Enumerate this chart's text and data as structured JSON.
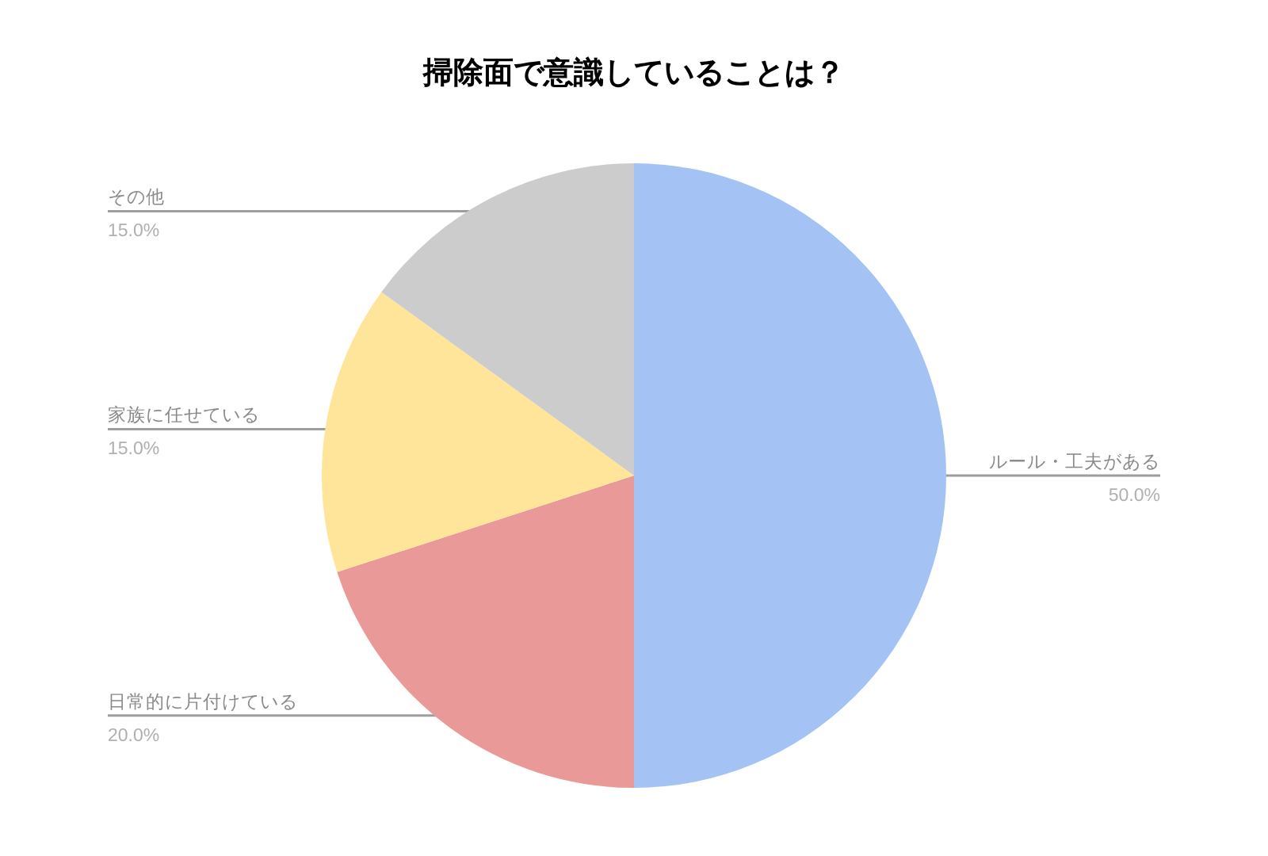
{
  "chart_data": {
    "type": "pie",
    "title": "掃除面で意識していることは？",
    "categories": [
      "ルール・工夫がある",
      "日常的に片付けている",
      "家族に任せている",
      "その他"
    ],
    "values": [
      50,
      20,
      15,
      15
    ],
    "colors": [
      "#a4c2f4",
      "#ea9999",
      "#ffe599",
      "#cccccc"
    ],
    "value_labels": [
      "50.0%",
      "20.0%",
      "15.0%",
      "15.0%"
    ]
  }
}
